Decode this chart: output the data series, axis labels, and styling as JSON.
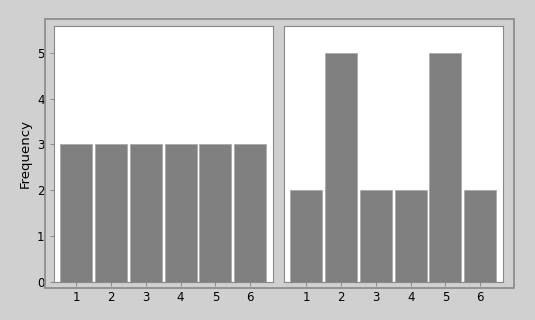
{
  "left_values": [
    3,
    3,
    3,
    3,
    3,
    3
  ],
  "right_values": [
    2,
    5,
    2,
    2,
    5,
    2
  ],
  "categories": [
    1,
    2,
    3,
    4,
    5,
    6
  ],
  "bar_color": "#808080",
  "bar_edgecolor": "#aaaaaa",
  "ylabel": "Frequency",
  "ylim": [
    0,
    5.6
  ],
  "yticks": [
    0,
    1,
    2,
    3,
    4,
    5
  ],
  "xticks": [
    1,
    2,
    3,
    4,
    5,
    6
  ],
  "bg_color": "#d0d0d0",
  "plot_bg_color": "#ffffff",
  "bar_width": 0.92,
  "tick_fontsize": 8.5,
  "label_fontsize": 9.5,
  "outer_border_color": "#aaaaaa",
  "spine_color": "#888888"
}
